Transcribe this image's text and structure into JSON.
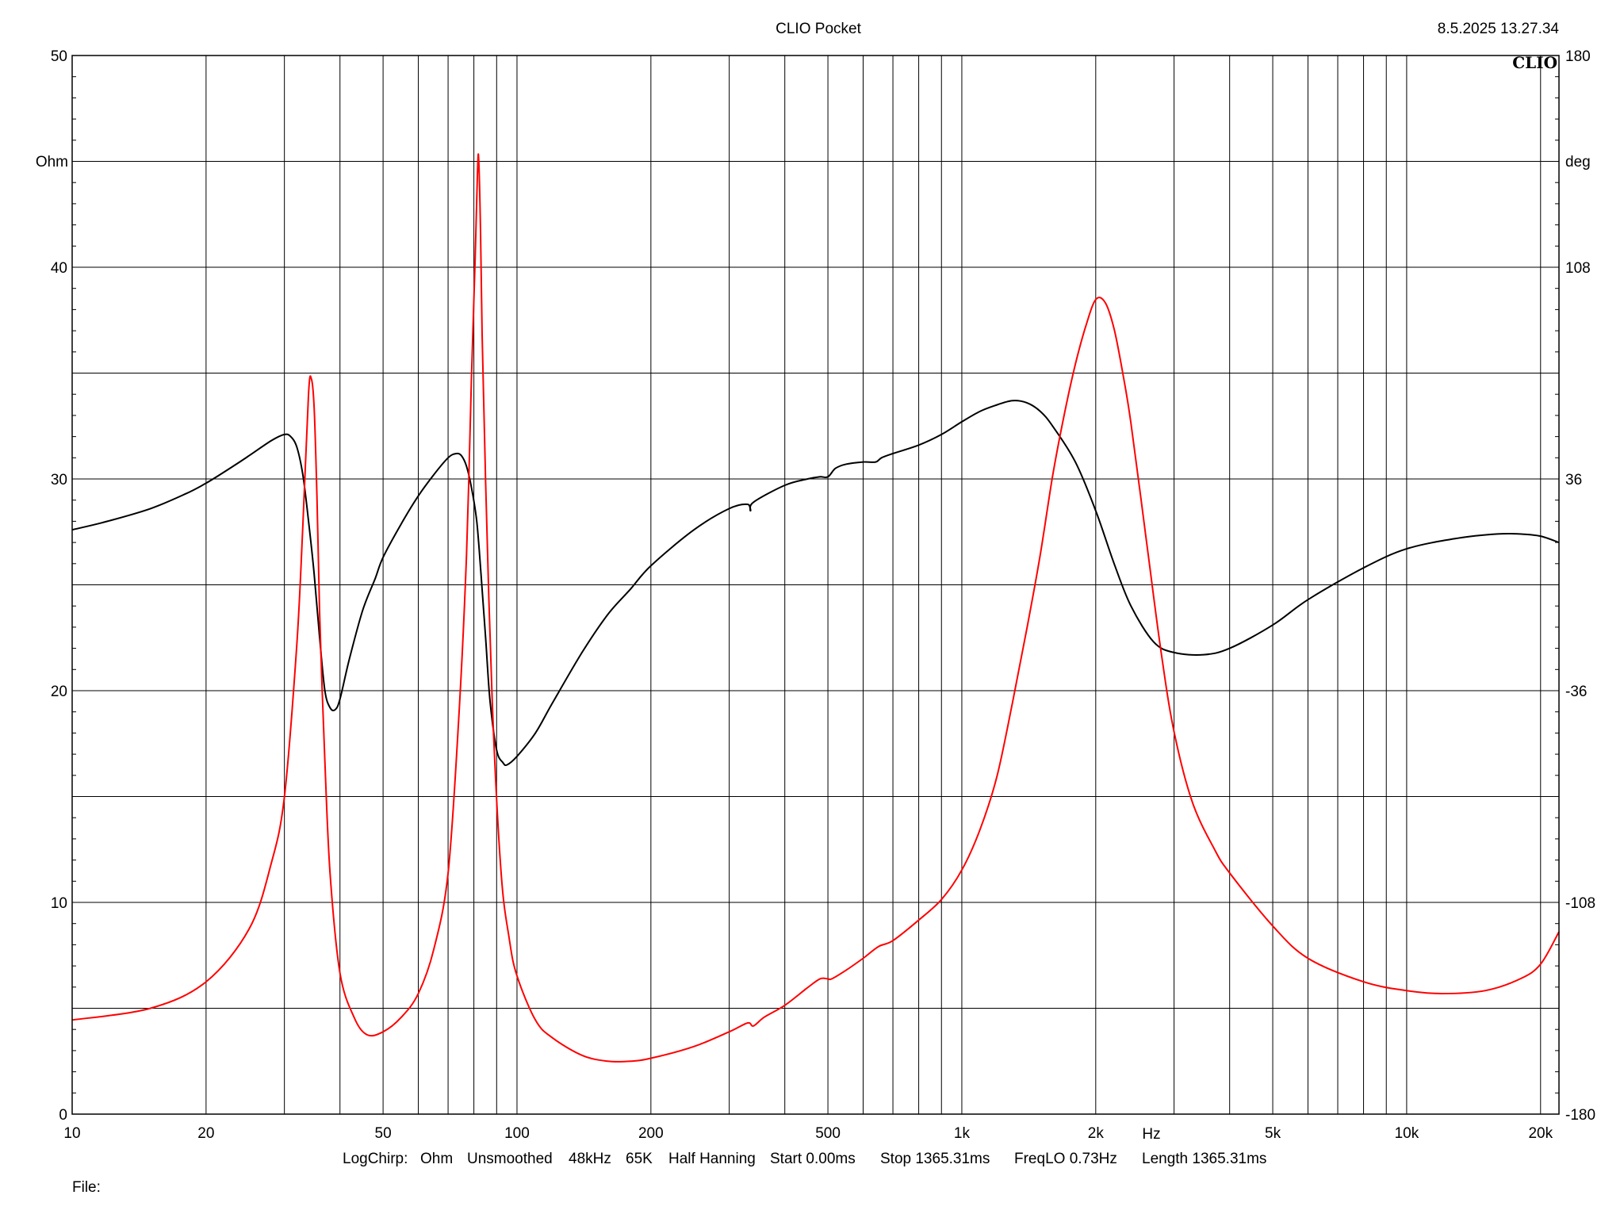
{
  "app_title": "CLIO Pocket",
  "timestamp": "8.5.2025 13.27.34",
  "logo": "CLIO",
  "info_line": {
    "mode": "LogChirp:",
    "unit": "Ohm",
    "smoothing": "Unsmoothed",
    "rate": "48kHz",
    "size": "65K",
    "window": "Half Hanning",
    "start": "Start 0.00ms",
    "stop": "Stop 1365.31ms",
    "freqlo": "FreqLO 0.73Hz",
    "length": "Length 1365.31ms"
  },
  "file_label": "File:",
  "colors": {
    "magnitude": "#000000",
    "phase": "#ff0000",
    "grid": "#000000"
  },
  "chart_data": {
    "type": "line",
    "x_scale": "log",
    "xlim": [
      10,
      22000
    ],
    "xlabel": "Hz",
    "x_ticks": [
      {
        "v": 10,
        "label": "10"
      },
      {
        "v": 20,
        "label": "20"
      },
      {
        "v": 50,
        "label": "50"
      },
      {
        "v": 100,
        "label": "100"
      },
      {
        "v": 200,
        "label": "200"
      },
      {
        "v": 500,
        "label": "500"
      },
      {
        "v": 1000,
        "label": "1k"
      },
      {
        "v": 2000,
        "label": "2k"
      },
      {
        "v": 5000,
        "label": "5k"
      },
      {
        "v": 10000,
        "label": "10k"
      },
      {
        "v": 20000,
        "label": "20k"
      }
    ],
    "y_left": {
      "label": "Ohm",
      "lim": [
        0,
        50
      ],
      "ticks": [
        "0",
        "10",
        "20",
        "30",
        "40",
        "50"
      ]
    },
    "y_right": {
      "label": "deg",
      "lim": [
        -180,
        180
      ],
      "ticks": [
        "-180",
        "-108",
        "-36",
        "36",
        "108",
        "180"
      ]
    },
    "grid": true,
    "series": [
      {
        "axis": "left",
        "color": "#000000",
        "x": [
          10,
          12,
          15,
          18,
          20,
          23,
          25,
          28,
          30,
          31,
          32,
          33,
          34,
          35,
          36,
          37,
          38,
          39,
          40,
          42,
          45,
          48,
          50,
          55,
          60,
          65,
          70,
          73,
          75,
          77,
          79,
          81,
          82,
          83,
          85,
          87,
          90,
          93,
          95,
          100,
          110,
          120,
          140,
          160,
          180,
          200,
          250,
          300,
          330,
          335,
          340,
          400,
          450,
          480,
          500,
          520,
          550,
          600,
          640,
          660,
          700,
          800,
          900,
          1000,
          1100,
          1200,
          1300,
          1400,
          1500,
          1600,
          1800,
          2000,
          2200,
          2400,
          2700,
          3000,
          3500,
          4000,
          5000,
          6000,
          8000,
          10000,
          13000,
          16000,
          18000,
          20000,
          22000
        ],
        "values": [
          27.6,
          28.0,
          28.6,
          29.3,
          29.8,
          30.6,
          31.1,
          31.8,
          32.1,
          32.0,
          31.5,
          30.2,
          28.0,
          25.5,
          22.5,
          20.0,
          19.2,
          19.1,
          19.6,
          21.5,
          23.8,
          25.3,
          26.3,
          27.9,
          29.2,
          30.2,
          31.0,
          31.2,
          31.1,
          30.6,
          29.6,
          28.2,
          27.0,
          25.5,
          22.5,
          19.5,
          17.2,
          16.6,
          16.5,
          16.9,
          18.0,
          19.4,
          21.8,
          23.6,
          24.8,
          25.9,
          27.6,
          28.6,
          28.8,
          28.5,
          28.9,
          29.7,
          30.0,
          30.1,
          30.1,
          30.5,
          30.7,
          30.8,
          30.8,
          31.0,
          31.2,
          31.6,
          32.1,
          32.7,
          33.2,
          33.5,
          33.7,
          33.6,
          33.2,
          32.5,
          30.8,
          28.5,
          26.0,
          24.0,
          22.3,
          21.8,
          21.7,
          22.0,
          23.1,
          24.3,
          25.8,
          26.7,
          27.2,
          27.4,
          27.4,
          27.3,
          27.0
        ]
      },
      {
        "axis": "right",
        "color": "#ff0000",
        "x": [
          10,
          15,
          20,
          25,
          28,
          30,
          32,
          33,
          34,
          34.5,
          35,
          35.5,
          36,
          37,
          38,
          40,
          43,
          46,
          50,
          55,
          60,
          65,
          70,
          74,
          77,
          79,
          80.5,
          81.5,
          82,
          82.8,
          83.5,
          85,
          88,
          92,
          96,
          100,
          110,
          120,
          140,
          160,
          180,
          200,
          250,
          300,
          330,
          340,
          360,
          400,
          450,
          480,
          500,
          510,
          550,
          600,
          650,
          700,
          800,
          900,
          1000,
          1100,
          1200,
          1300,
          1400,
          1500,
          1600,
          1700,
          1800,
          1900,
          2000,
          2100,
          2200,
          2300,
          2400,
          2600,
          2800,
          3000,
          3300,
          3700,
          4000,
          5000,
          6000,
          8000,
          10000,
          12000,
          15000,
          18000,
          20000,
          22000
        ],
        "values": [
          -148,
          -144,
          -135,
          -117,
          -95,
          -72,
          -20,
          20,
          65,
          70,
          60,
          30,
          -10,
          -60,
          -98,
          -132,
          -147,
          -153,
          -152,
          -147,
          -139,
          -124,
          -98,
          -45,
          10,
          70,
          110,
          140,
          145,
          120,
          85,
          35,
          -40,
          -97,
          -120,
          -133,
          -148,
          -154,
          -160,
          -162,
          -162,
          -161,
          -157,
          -152,
          -149,
          -150,
          -147,
          -143,
          -137,
          -134,
          -134,
          -134,
          -131,
          -127,
          -123,
          -121,
          -114,
          -107,
          -97,
          -83,
          -65,
          -40,
          -15,
          10,
          37,
          58,
          75,
          88,
          97,
          96,
          87,
          72,
          55,
          15,
          -22,
          -50,
          -74,
          -90,
          -98,
          -116,
          -127,
          -135,
          -138,
          -139,
          -138,
          -134,
          -129,
          -118
        ]
      }
    ]
  }
}
